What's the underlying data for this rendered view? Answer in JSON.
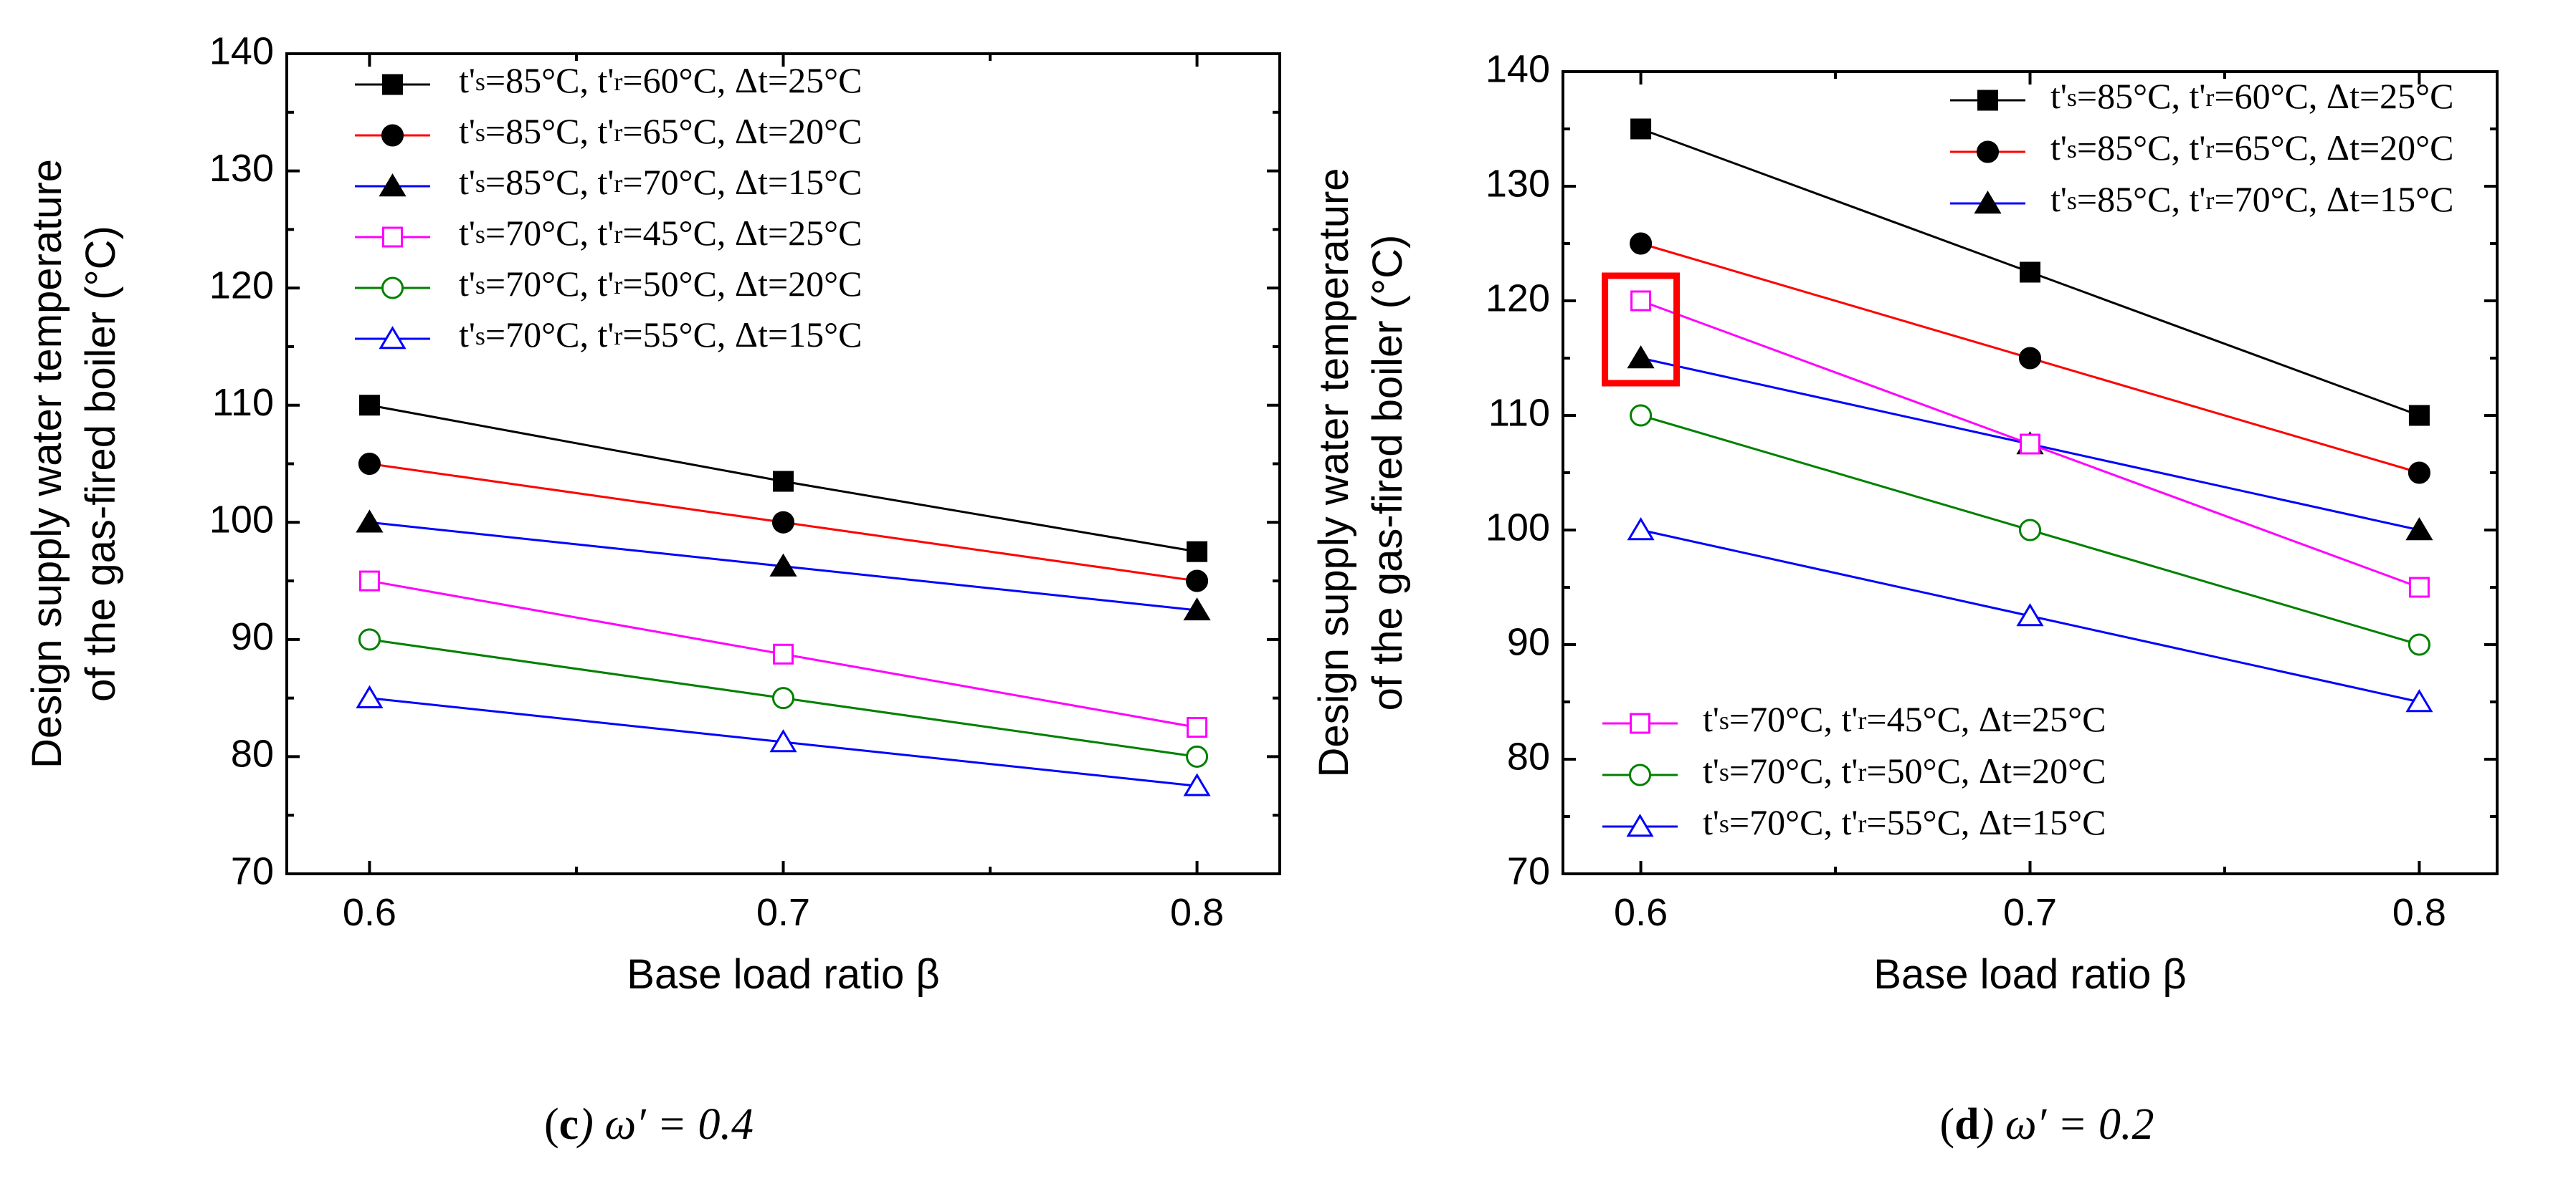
{
  "chart_data": [
    {
      "type": "line",
      "panel": "c",
      "caption": {
        "letter": "c",
        "text": "ω′ = 0.4"
      },
      "xlabel": "Base load ratio β",
      "ylabel_line1": "Design supply water temperature",
      "ylabel_line2": "of the gas-fired boiler (°C)",
      "xlim": [
        0.58,
        0.82
      ],
      "ylim": [
        70,
        140
      ],
      "x_ticks": [
        0.6,
        0.7,
        0.8
      ],
      "x_tick_labels": [
        "0.6",
        "0.7",
        "0.8"
      ],
      "y_ticks": [
        70,
        80,
        90,
        100,
        110,
        120,
        130,
        140
      ],
      "y_tick_labels": [
        "70",
        "80",
        "90",
        "100",
        "110",
        "120",
        "130",
        "140"
      ],
      "legend_position": "top-left",
      "x": [
        0.6,
        0.7,
        0.8
      ],
      "series": [
        {
          "name": "t's=85°C, t'r=60°C, Δt=25°C",
          "ts": "85",
          "tr": "60",
          "dt": "25",
          "values": [
            110,
            103.5,
            97.5
          ],
          "color": "#000000",
          "marker": "square",
          "filled": true,
          "legend_group": 0
        },
        {
          "name": "t's=85°C, t'r=65°C, Δt=20°C",
          "ts": "85",
          "tr": "65",
          "dt": "20",
          "values": [
            105,
            100,
            95
          ],
          "color": "#ff0000",
          "marker": "circle",
          "filled": true,
          "legend_group": 0
        },
        {
          "name": "t's=85°C, t'r=70°C, Δt=15°C",
          "ts": "85",
          "tr": "70",
          "dt": "15",
          "values": [
            100,
            96.25,
            92.5
          ],
          "color": "#0000ff",
          "marker": "triangle",
          "filled": true,
          "legend_group": 0
        },
        {
          "name": "t's=70°C, t'r=45°C, Δt=25°C",
          "ts": "70",
          "tr": "45",
          "dt": "25",
          "values": [
            95,
            88.75,
            82.5
          ],
          "color": "#ff00ff",
          "marker": "square",
          "filled": false,
          "legend_group": 0
        },
        {
          "name": "t's=70°C, t'r=50°C, Δt=20°C",
          "ts": "70",
          "tr": "50",
          "dt": "20",
          "values": [
            90,
            85,
            80
          ],
          "color": "#008000",
          "marker": "circle",
          "filled": false,
          "legend_group": 0
        },
        {
          "name": "t's=70°C, t'r=55°C, Δt=15°C",
          "ts": "70",
          "tr": "55",
          "dt": "15",
          "values": [
            85,
            81.25,
            77.5
          ],
          "color": "#0000ff",
          "marker": "triangle",
          "filled": false,
          "legend_group": 0
        }
      ]
    },
    {
      "type": "line",
      "panel": "d",
      "caption": {
        "letter": "d",
        "text": "ω′ = 0.2"
      },
      "xlabel": "Base load ratio β",
      "ylabel_line1": "Design supply water temperature",
      "ylabel_line2": "of the gas-fired boiler (°C)",
      "xlim": [
        0.58,
        0.82
      ],
      "ylim": [
        70,
        140
      ],
      "x_ticks": [
        0.6,
        0.7,
        0.8
      ],
      "x_tick_labels": [
        "0.6",
        "0.7",
        "0.8"
      ],
      "y_ticks": [
        70,
        80,
        90,
        100,
        110,
        120,
        130,
        140
      ],
      "y_tick_labels": [
        "70",
        "80",
        "90",
        "100",
        "110",
        "120",
        "130",
        "140"
      ],
      "legend_position": "top-right and bottom-left",
      "highlight": {
        "x": 0.6,
        "y_range": [
          115,
          120
        ],
        "color": "#ff0000"
      },
      "x": [
        0.6,
        0.7,
        0.8
      ],
      "series": [
        {
          "name": "t's=85°C, t'r=60°C, Δt=25°C",
          "ts": "85",
          "tr": "60",
          "dt": "25",
          "values": [
            135,
            122.5,
            110
          ],
          "color": "#000000",
          "marker": "square",
          "filled": true,
          "legend_group": 0
        },
        {
          "name": "t's=85°C, t'r=65°C, Δt=20°C",
          "ts": "85",
          "tr": "65",
          "dt": "20",
          "values": [
            125,
            115,
            105
          ],
          "color": "#ff0000",
          "marker": "circle",
          "filled": true,
          "legend_group": 0
        },
        {
          "name": "t's=85°C, t'r=70°C, Δt=15°C",
          "ts": "85",
          "tr": "70",
          "dt": "15",
          "values": [
            115,
            107.5,
            100
          ],
          "color": "#0000ff",
          "marker": "triangle",
          "filled": true,
          "legend_group": 0
        },
        {
          "name": "t's=70°C, t'r=45°C, Δt=25°C",
          "ts": "70",
          "tr": "45",
          "dt": "25",
          "values": [
            120,
            107.5,
            95
          ],
          "color": "#ff00ff",
          "marker": "square",
          "filled": false,
          "legend_group": 1
        },
        {
          "name": "t's=70°C, t'r=50°C, Δt=20°C",
          "ts": "70",
          "tr": "50",
          "dt": "20",
          "values": [
            110,
            100,
            90
          ],
          "color": "#008000",
          "marker": "circle",
          "filled": false,
          "legend_group": 1
        },
        {
          "name": "t's=70°C, t'r=55°C, Δt=15°C",
          "ts": "70",
          "tr": "55",
          "dt": "15",
          "values": [
            100,
            92.5,
            85
          ],
          "color": "#0000ff",
          "marker": "triangle",
          "filled": false,
          "legend_group": 1
        }
      ]
    }
  ]
}
